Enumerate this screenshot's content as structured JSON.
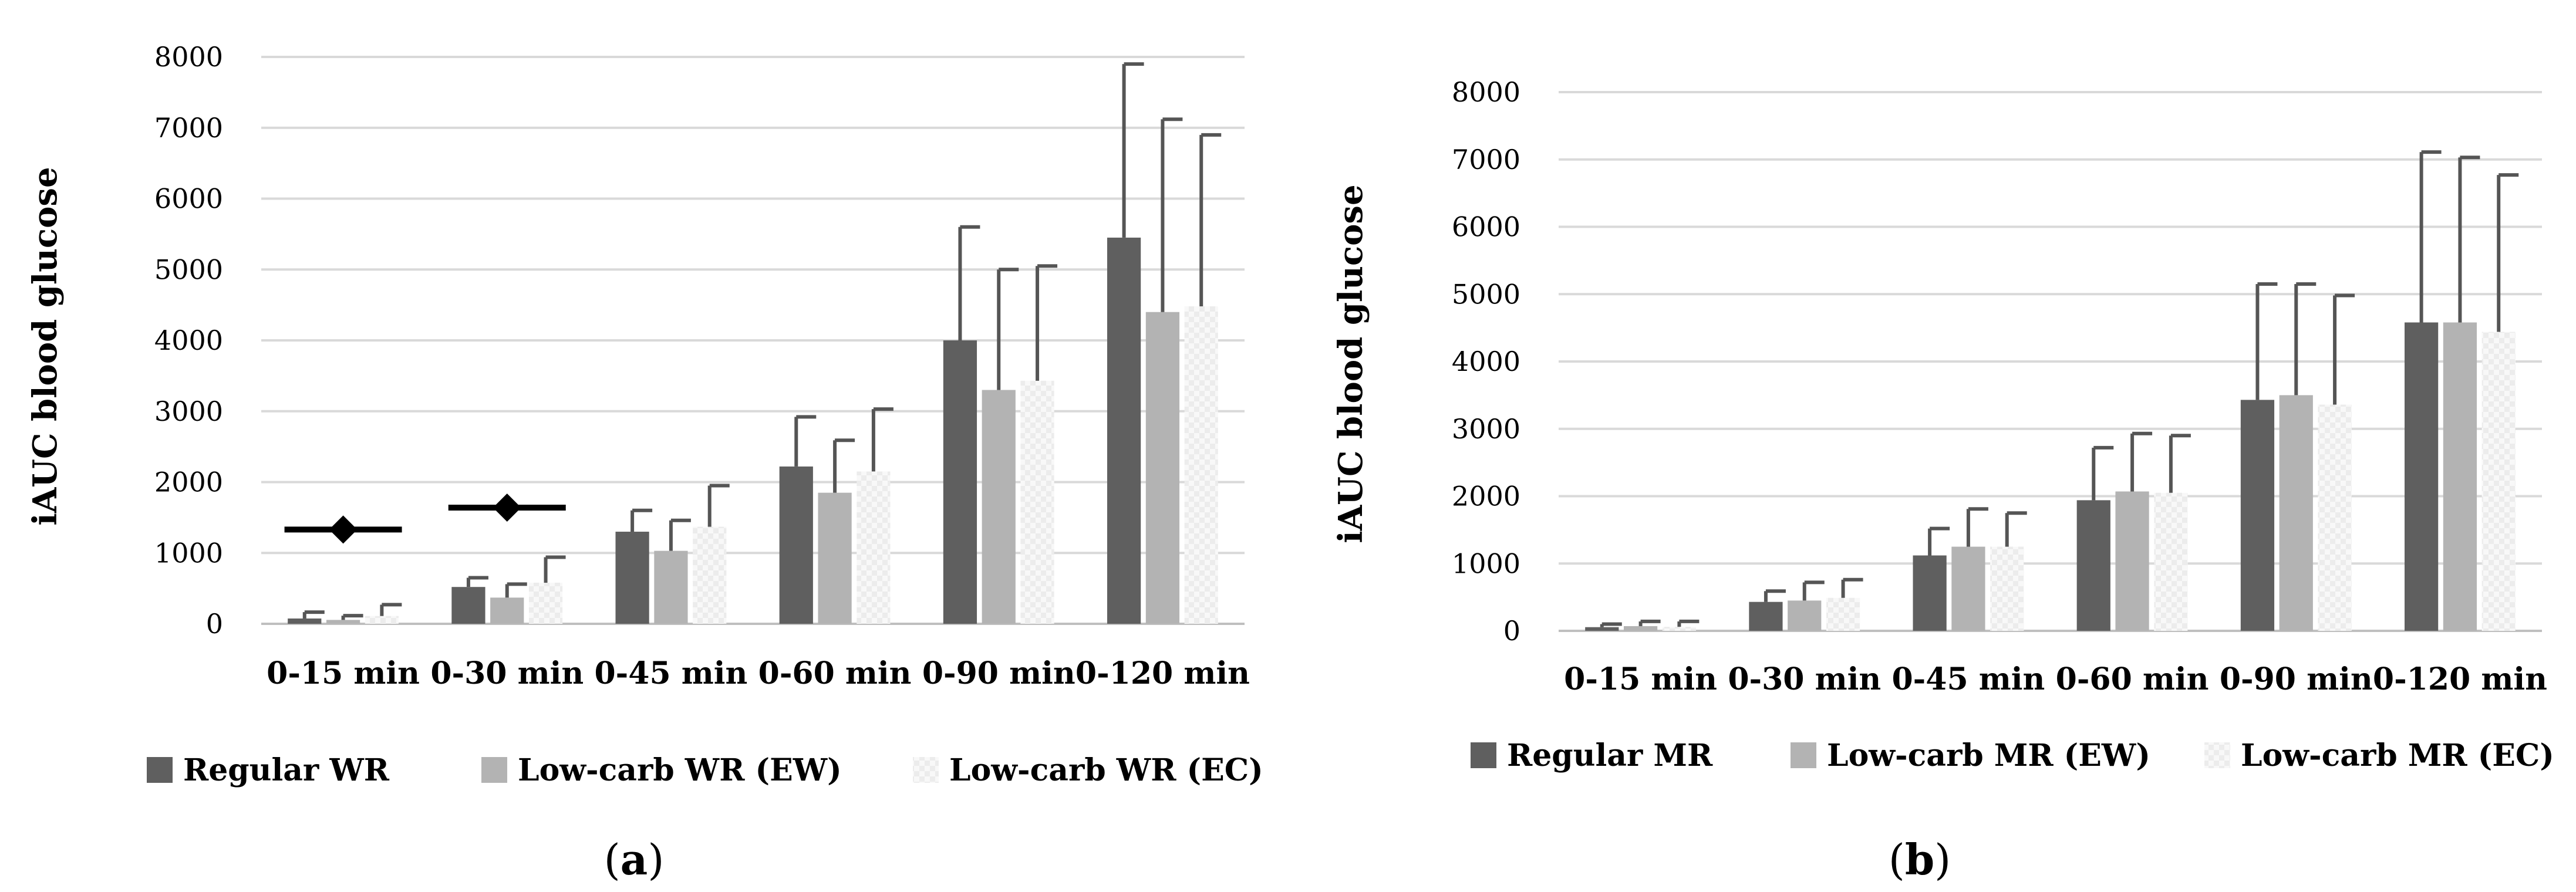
{
  "colors": {
    "regular": "#5f5f5f",
    "ew": "#b3b3b3",
    "ec": "#e9e9e9",
    "ecPattern": "#f7f7f7",
    "grid": "#d9d9d9",
    "error": "#555555",
    "marker": "#000000"
  },
  "chart_data": [
    {
      "type": "bar",
      "panel_label": "a",
      "ylabel": "iAUC blood glucose",
      "xlabel": "",
      "ylim": [
        0,
        8000
      ],
      "yticks": [
        "0",
        "1000",
        "2000",
        "3000",
        "4000",
        "5000",
        "6000",
        "7000",
        "8000"
      ],
      "grid": true,
      "legend_position": "bottom",
      "categories": [
        "0-15 min",
        "0-30 min",
        "0-45 min",
        "0-60 min",
        "0-90 min",
        "0-120 min"
      ],
      "series": [
        {
          "name": "Regular WR",
          "values": [
            75,
            520,
            1300,
            2220,
            4000,
            5450
          ],
          "error": [
            90,
            130,
            300,
            700,
            1600,
            2450
          ]
        },
        {
          "name": "Low-carb WR (EW)",
          "values": [
            55,
            370,
            1030,
            1850,
            3300,
            4400
          ],
          "error": [
            60,
            190,
            430,
            740,
            1700,
            2720
          ]
        },
        {
          "name": "Low-carb WR (EC)",
          "values": [
            110,
            580,
            1370,
            2150,
            3430,
            4480
          ],
          "error": [
            160,
            360,
            580,
            880,
            1620,
            2420
          ]
        }
      ],
      "markers": [
        {
          "category": "0-15 min",
          "value": 1330
        },
        {
          "category": "0-30 min",
          "value": 1640
        }
      ]
    },
    {
      "type": "bar",
      "panel_label": "b",
      "ylabel": "iAUC blood glucose",
      "xlabel": "",
      "ylim": [
        0,
        8000
      ],
      "yticks": [
        "0",
        "1000",
        "2000",
        "3000",
        "4000",
        "5000",
        "6000",
        "7000",
        "8000"
      ],
      "grid": true,
      "legend_position": "bottom",
      "categories": [
        "0-15 min",
        "0-30 min",
        "0-45 min",
        "0-60 min",
        "0-90 min",
        "0-120 min"
      ],
      "series": [
        {
          "name": "Regular MR",
          "values": [
            55,
            430,
            1120,
            1940,
            3430,
            4580
          ],
          "error": [
            45,
            160,
            400,
            780,
            1720,
            2530
          ]
        },
        {
          "name": "Low-carb MR (EW)",
          "values": [
            70,
            450,
            1250,
            2070,
            3500,
            4580
          ],
          "error": [
            70,
            270,
            560,
            860,
            1650,
            2450
          ]
        },
        {
          "name": "Low-carb MR (EC)",
          "values": [
            60,
            490,
            1250,
            2050,
            3360,
            4440
          ],
          "error": [
            80,
            270,
            500,
            850,
            1620,
            2330
          ]
        }
      ],
      "markers": []
    }
  ]
}
